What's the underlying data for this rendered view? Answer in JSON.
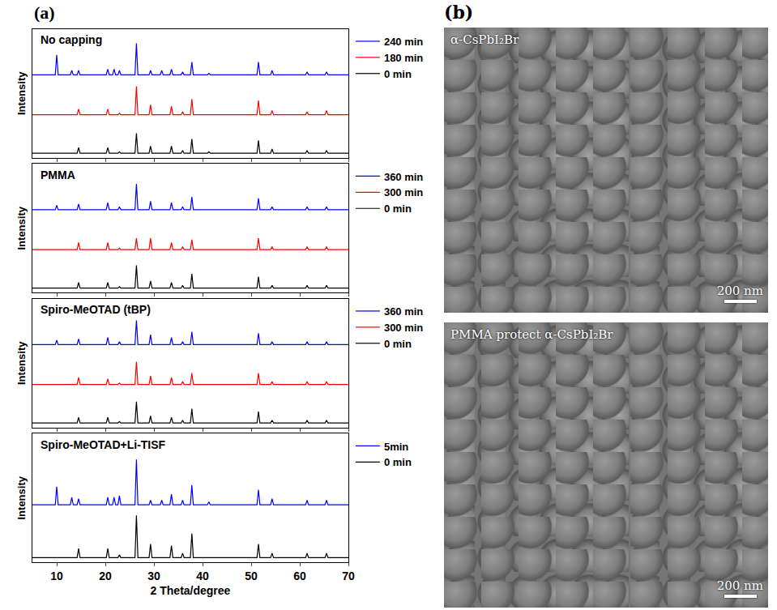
{
  "chart_data": [
    {
      "type": "line",
      "title": "No capping",
      "ylabel": "Intensity",
      "tick_labels": false,
      "legend": "right",
      "grid": false,
      "xlim": [
        5,
        70
      ],
      "xticks": [
        10,
        20,
        30,
        40,
        50,
        60,
        70
      ],
      "ylim": [
        0,
        90
      ],
      "x": [
        5,
        9.7,
        10,
        10.3,
        12.8,
        13.1,
        13.4,
        14.2,
        14.5,
        14.8,
        20.2,
        20.5,
        20.8,
        21.5,
        21.8,
        22.1,
        22.6,
        22.9,
        23.2,
        26.1,
        26.4,
        26.7,
        29,
        29.3,
        29.6,
        31.3,
        31.6,
        31.9,
        33.3,
        33.6,
        33.9,
        35.6,
        35.9,
        36.2,
        37.5,
        37.8,
        38.1,
        41,
        41.3,
        41.6,
        51.2,
        51.5,
        51.8,
        54,
        54.3,
        54.6,
        61.2,
        61.5,
        61.8,
        65.2,
        65.5,
        65.8,
        70
      ],
      "series": [
        {
          "name": "0 min",
          "color": "#000000",
          "values": [
            3,
            3,
            3,
            3,
            3,
            3,
            3,
            3,
            7,
            3,
            3,
            7,
            3,
            3,
            3,
            3,
            3,
            4,
            3,
            3,
            17,
            3,
            3,
            8,
            3,
            3,
            3,
            3,
            3,
            8,
            3,
            3,
            5,
            3,
            3,
            13,
            3,
            3,
            4,
            3,
            3,
            12,
            3,
            3,
            6,
            3,
            3,
            5,
            3,
            3,
            5,
            3,
            3
          ]
        },
        {
          "name": "180 min",
          "color": "#ff0000",
          "values": [
            30,
            30,
            30,
            30,
            30,
            30,
            30,
            30,
            34,
            30,
            30,
            34,
            30,
            30,
            30,
            30,
            30,
            31,
            30,
            30,
            50,
            30,
            30,
            37,
            30,
            30,
            30,
            30,
            30,
            36,
            30,
            30,
            32,
            30,
            30,
            41,
            30,
            30,
            30,
            30,
            30,
            40,
            30,
            30,
            33,
            30,
            30,
            32,
            30,
            30,
            33,
            30,
            30
          ]
        },
        {
          "name": "240 min",
          "color": "#0000ff",
          "values": [
            58,
            58,
            72,
            58,
            58,
            61,
            58,
            58,
            61,
            58,
            58,
            62,
            58,
            58,
            62,
            58,
            58,
            61,
            58,
            58,
            80,
            58,
            58,
            61,
            58,
            58,
            61,
            58,
            58,
            62,
            58,
            58,
            60,
            58,
            58,
            67,
            58,
            58,
            59,
            58,
            58,
            67,
            58,
            58,
            61,
            58,
            58,
            60,
            58,
            58,
            60,
            58,
            58
          ]
        }
      ]
    },
    {
      "type": "line",
      "title": "PMMA",
      "ylabel": "Intensity",
      "tick_labels": false,
      "legend": "right",
      "grid": false,
      "xlim": [
        5,
        70
      ],
      "xticks": [
        10,
        20,
        30,
        40,
        50,
        60,
        70
      ],
      "ylim": [
        0,
        90
      ],
      "x": [
        5,
        9.7,
        10,
        10.3,
        12.8,
        13.1,
        13.4,
        14.2,
        14.5,
        14.8,
        20.2,
        20.5,
        20.8,
        21.5,
        21.8,
        22.1,
        22.6,
        22.9,
        23.2,
        26.1,
        26.4,
        26.7,
        29,
        29.3,
        29.6,
        31.3,
        31.6,
        31.9,
        33.3,
        33.6,
        33.9,
        35.6,
        35.9,
        36.2,
        37.5,
        37.8,
        38.1,
        41,
        41.3,
        41.6,
        51.2,
        51.5,
        51.8,
        54,
        54.3,
        54.6,
        61.2,
        61.5,
        61.8,
        65.2,
        65.5,
        65.8,
        70
      ],
      "series": [
        {
          "name": "0 min",
          "color": "#000000",
          "values": [
            3,
            3,
            3,
            3,
            3,
            3,
            3,
            3,
            7,
            3,
            3,
            7,
            3,
            3,
            3,
            3,
            3,
            4,
            3,
            3,
            19,
            3,
            3,
            8,
            3,
            3,
            3,
            3,
            3,
            7,
            3,
            3,
            5,
            3,
            3,
            13,
            3,
            3,
            3,
            3,
            3,
            11,
            3,
            3,
            5,
            3,
            3,
            5,
            3,
            3,
            5,
            3,
            3
          ]
        },
        {
          "name": "300 min",
          "color": "#ff0000",
          "values": [
            30,
            30,
            30,
            30,
            30,
            30,
            30,
            30,
            35,
            30,
            30,
            35,
            30,
            30,
            30,
            30,
            30,
            31,
            30,
            30,
            38,
            30,
            30,
            38,
            30,
            30,
            30,
            30,
            30,
            35,
            30,
            30,
            32,
            30,
            30,
            37,
            30,
            30,
            30,
            30,
            30,
            38,
            30,
            30,
            32,
            30,
            30,
            32,
            30,
            30,
            32,
            30,
            30
          ]
        },
        {
          "name": "360 min",
          "color": "#0000ff",
          "values": [
            58,
            58,
            61,
            58,
            58,
            58,
            58,
            58,
            62,
            58,
            58,
            63,
            58,
            58,
            58,
            58,
            58,
            60,
            58,
            58,
            76,
            58,
            58,
            64,
            58,
            58,
            58,
            58,
            58,
            63,
            58,
            58,
            60,
            58,
            58,
            67,
            58,
            58,
            58,
            58,
            58,
            66,
            58,
            58,
            60,
            58,
            58,
            60,
            58,
            58,
            60,
            58,
            58
          ]
        }
      ]
    },
    {
      "type": "line",
      "title": "Spiro-MeOTAD (tBP)",
      "ylabel": "Intensity",
      "tick_labels": false,
      "legend": "right",
      "grid": false,
      "xlim": [
        5,
        70
      ],
      "xticks": [
        10,
        20,
        30,
        40,
        50,
        60,
        70
      ],
      "ylim": [
        0,
        90
      ],
      "x": [
        5,
        9.7,
        10,
        10.3,
        12.8,
        13.1,
        13.4,
        14.2,
        14.5,
        14.8,
        20.2,
        20.5,
        20.8,
        21.5,
        21.8,
        22.1,
        22.6,
        22.9,
        23.2,
        26.1,
        26.4,
        26.7,
        29,
        29.3,
        29.6,
        31.3,
        31.6,
        31.9,
        33.3,
        33.6,
        33.9,
        35.6,
        35.9,
        36.2,
        37.5,
        37.8,
        38.1,
        41,
        41.3,
        41.6,
        51.2,
        51.5,
        51.8,
        54,
        54.3,
        54.6,
        61.2,
        61.5,
        61.8,
        65.2,
        65.5,
        65.8,
        70
      ],
      "series": [
        {
          "name": "0 min",
          "color": "#000000",
          "values": [
            3,
            3,
            3,
            3,
            3,
            3,
            3,
            3,
            7,
            3,
            3,
            7,
            3,
            3,
            3,
            3,
            3,
            4,
            3,
            3,
            18,
            3,
            3,
            8,
            3,
            3,
            3,
            3,
            3,
            7,
            3,
            3,
            5,
            3,
            3,
            13,
            3,
            3,
            3,
            3,
            3,
            11,
            3,
            3,
            5,
            3,
            3,
            5,
            3,
            3,
            5,
            3,
            3
          ]
        },
        {
          "name": "300 min",
          "color": "#ff0000",
          "values": [
            30,
            30,
            30,
            30,
            30,
            30,
            30,
            30,
            35,
            30,
            30,
            34,
            30,
            30,
            30,
            30,
            30,
            31,
            30,
            30,
            46,
            30,
            30,
            36,
            30,
            30,
            30,
            30,
            30,
            35,
            30,
            30,
            32,
            30,
            30,
            38,
            30,
            30,
            30,
            30,
            30,
            38,
            30,
            30,
            32,
            30,
            30,
            32,
            30,
            30,
            32,
            30,
            30
          ]
        },
        {
          "name": "360 min",
          "color": "#0000ff",
          "values": [
            58,
            58,
            61,
            58,
            58,
            58,
            58,
            58,
            62,
            58,
            58,
            63,
            58,
            58,
            58,
            58,
            58,
            60,
            58,
            58,
            75,
            58,
            58,
            65,
            58,
            58,
            58,
            58,
            58,
            63,
            58,
            58,
            60,
            58,
            58,
            67,
            58,
            58,
            58,
            58,
            58,
            66,
            58,
            58,
            60,
            58,
            58,
            60,
            58,
            58,
            60,
            58,
            58
          ]
        }
      ]
    },
    {
      "type": "line",
      "title": "Spiro-MeOTAD+Li-TISF",
      "ylabel": "Intensity",
      "xlabel": "2 Theta/degree",
      "tick_labels": "x",
      "legend": "right",
      "grid": false,
      "xlim": [
        5,
        70
      ],
      "xticks": [
        10,
        20,
        30,
        40,
        50,
        60,
        70
      ],
      "ylim": [
        0,
        85
      ],
      "x": [
        5,
        9.7,
        10,
        10.3,
        12.8,
        13.1,
        13.4,
        14.2,
        14.5,
        14.8,
        20.2,
        20.5,
        20.8,
        21.5,
        21.8,
        22.1,
        22.6,
        22.9,
        23.2,
        26.1,
        26.4,
        26.7,
        29,
        29.3,
        29.6,
        31.3,
        31.6,
        31.9,
        33.3,
        33.6,
        33.9,
        35.6,
        35.9,
        36.2,
        37.5,
        37.8,
        38.1,
        41,
        41.3,
        41.6,
        51.2,
        51.5,
        51.8,
        54,
        54.3,
        54.6,
        61.2,
        61.5,
        61.8,
        65.2,
        65.5,
        65.8,
        70
      ],
      "series": [
        {
          "name": "0 min",
          "color": "#000000",
          "values": [
            3,
            3,
            3,
            3,
            3,
            3,
            3,
            3,
            9,
            3,
            3,
            9,
            3,
            3,
            3,
            3,
            3,
            5,
            3,
            3,
            31,
            3,
            3,
            12,
            3,
            3,
            3,
            3,
            3,
            11,
            3,
            3,
            6,
            3,
            3,
            19,
            3,
            3,
            3,
            3,
            3,
            12,
            3,
            3,
            6,
            3,
            3,
            6,
            3,
            3,
            6,
            3,
            3
          ]
        },
        {
          "name": "5min",
          "color": "#0000ff",
          "values": [
            38,
            38,
            50,
            38,
            38,
            43,
            38,
            38,
            42,
            38,
            38,
            43,
            38,
            38,
            43,
            38,
            38,
            44,
            38,
            38,
            68,
            38,
            38,
            41,
            38,
            38,
            41,
            38,
            38,
            45,
            38,
            38,
            41,
            38,
            38,
            51,
            38,
            38,
            40,
            38,
            38,
            48,
            38,
            38,
            42,
            38,
            38,
            41,
            38,
            38,
            41,
            38,
            38
          ]
        }
      ]
    }
  ],
  "panels": {
    "a": {
      "label": "(a)"
    },
    "b": {
      "label": "(b)",
      "images": [
        {
          "caption": "α-CsPbI₂Br",
          "scale_bar": "200 nm"
        },
        {
          "caption": "PMMA protect α-CsPbI₂Br",
          "scale_bar": "200 nm"
        }
      ]
    }
  }
}
